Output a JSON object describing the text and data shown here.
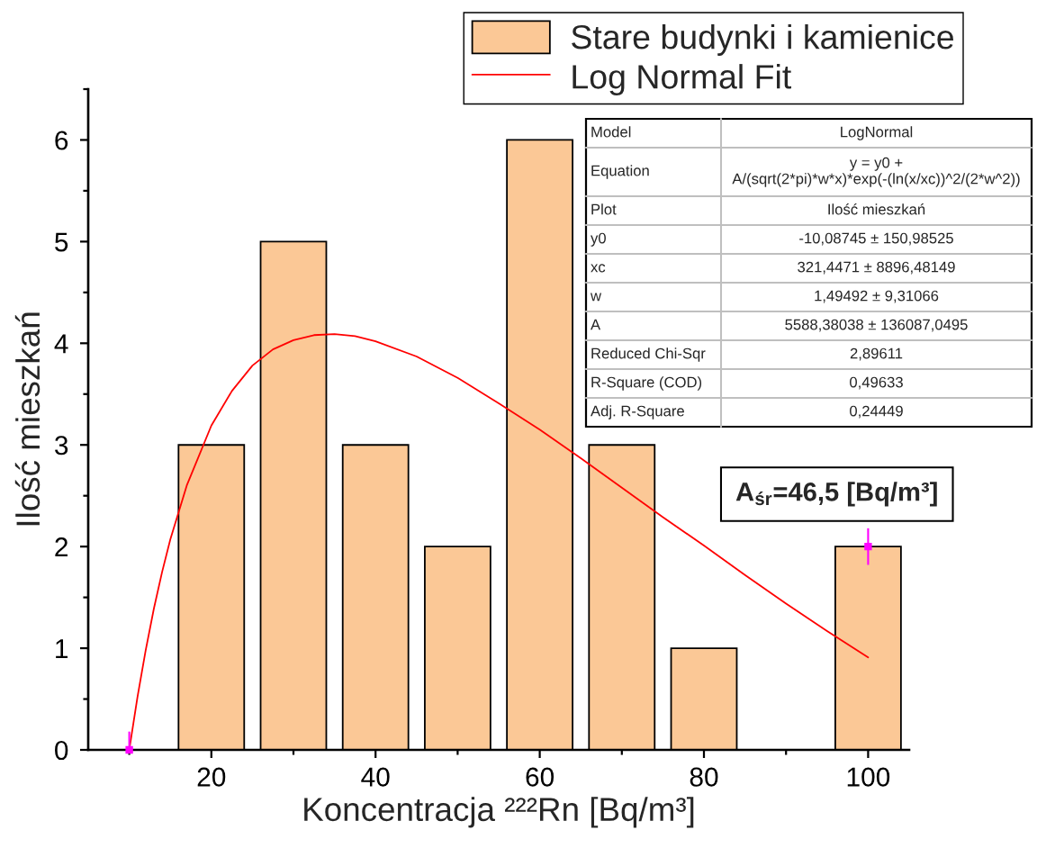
{
  "chart_data": {
    "type": "bar",
    "xlabel": "Koncentracja ²²²Rn [Bq/m³]",
    "ylabel": "Ilość mieszkań",
    "series": [
      {
        "name": "Stare budynki i kamienice",
        "color": "#fbc896",
        "x": [
          20,
          30,
          40,
          50,
          60,
          70,
          80,
          100
        ],
        "values": [
          3,
          5,
          3,
          2,
          6,
          3,
          1,
          2
        ]
      },
      {
        "type": "line",
        "name": "Log Normal Fit",
        "color": "#ff0000",
        "line_style": "solid",
        "x": [
          10,
          10.5,
          11,
          12,
          13,
          14,
          15,
          17,
          20,
          22.5,
          25,
          27.5,
          30,
          32.5,
          35,
          37.5,
          40,
          45,
          50,
          55,
          60,
          65,
          70,
          75,
          80,
          85,
          90,
          95,
          100
        ],
        "values": [
          0,
          0.26,
          0.52,
          0.98,
          1.39,
          1.75,
          2.07,
          2.6,
          3.19,
          3.53,
          3.78,
          3.94,
          4.03,
          4.08,
          4.09,
          4.07,
          4.02,
          3.87,
          3.66,
          3.41,
          3.15,
          2.87,
          2.58,
          2.29,
          2.01,
          1.72,
          1.44,
          1.17,
          0.91
        ]
      },
      {
        "type": "scatter",
        "color": "#ff00ff",
        "marker": "square",
        "x": [
          10,
          100
        ],
        "values": [
          0,
          2
        ],
        "errors": [
          [
            0,
            0.18
          ],
          [
            1.82,
            2.18
          ]
        ]
      }
    ],
    "xlim": [
      5,
      105
    ],
    "xticks": [
      {
        "value": 10,
        "label": null
      },
      20,
      {
        "value": 30,
        "label": null
      },
      40,
      {
        "value": 50,
        "label": null
      },
      60,
      {
        "value": 70,
        "label": null
      },
      80,
      {
        "value": 90,
        "label": null
      },
      100
    ],
    "ylim": [
      0,
      6.5
    ],
    "yticks": [
      0,
      {
        "value": 0.5,
        "label": null
      },
      1,
      {
        "value": 1.5,
        "label": null
      },
      2,
      {
        "value": 2.5,
        "label": null
      },
      3,
      {
        "value": 3.5,
        "label": null
      },
      4,
      {
        "value": 4.5,
        "label": null
      },
      5,
      {
        "value": 5.5,
        "label": null
      },
      6,
      {
        "value": 6.5,
        "label": null
      }
    ],
    "legend": "top right",
    "annotations": [
      "Model",
      "LogNormal",
      "Equation",
      "y = y0 + A/(sqrt(2*pi)*w*x)*exp(-(ln(x/xc))^2/(2*w^2))",
      "Plot",
      "Ilość mieszkań",
      "y0",
      "-10,08745 ± 150,98525",
      "xc",
      "321,4471 ± 8896,48149",
      "w",
      "1,49492 ± 9,31066",
      "A",
      "5588,38038 ± 136087,0495",
      "Reduced Chi-Sqr",
      "2,89611",
      "R-Square (COD)",
      "0,49633",
      "Adj. R-Square",
      "0,24449",
      "A$_{śr}$=46,5 [Bq/m³]"
    ]
  }
}
